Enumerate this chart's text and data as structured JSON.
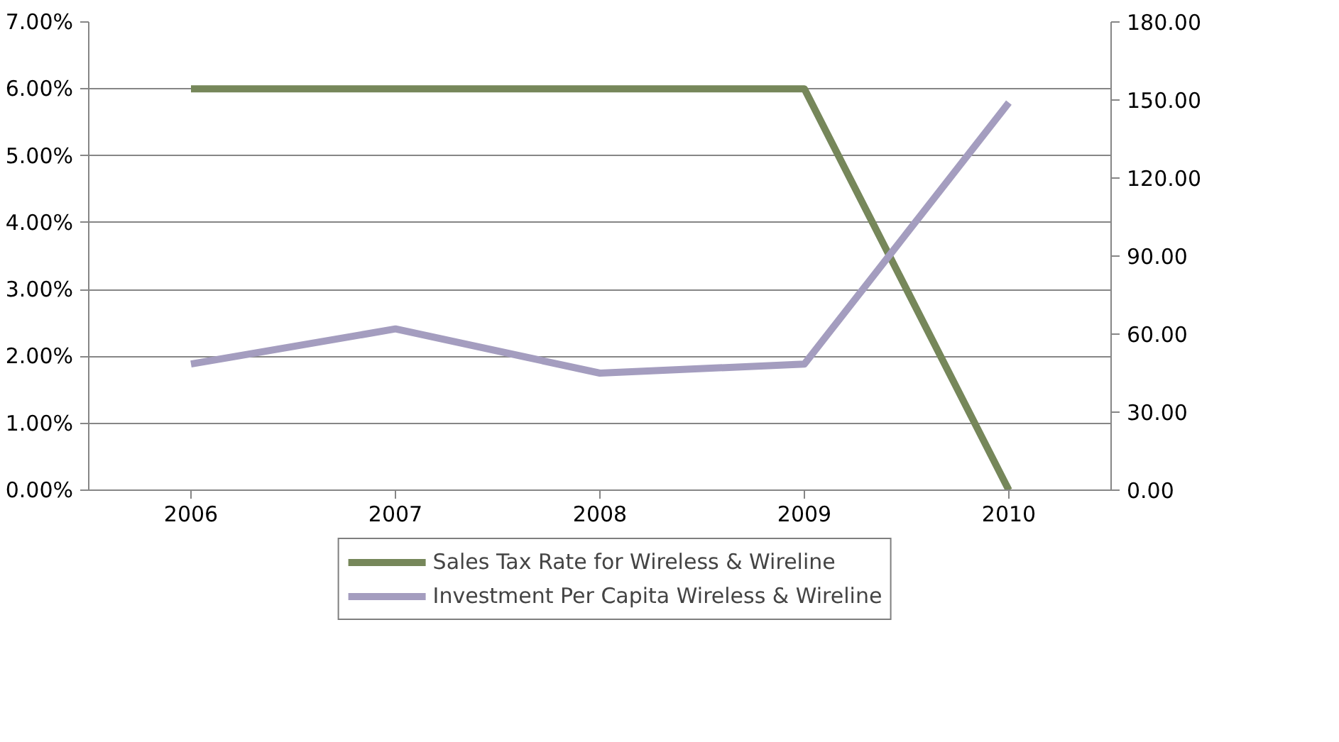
{
  "chart_data": {
    "type": "line",
    "categories": [
      "2006",
      "2007",
      "2008",
      "2009",
      "2010"
    ],
    "series": [
      {
        "name": "Sales Tax Rate for Wireless & Wireline",
        "color": "#76875a",
        "values": [
          6.0,
          6.0,
          6.0,
          6.0,
          0.0
        ]
      },
      {
        "name": "Investment Per Capita Wireless & Wireline",
        "color": "#a49dbf",
        "values": [
          48.5,
          62,
          45,
          48.5,
          149
        ],
        "axis": "y2"
      }
    ],
    "ylim": [
      0,
      7
    ],
    "yticks": [
      {
        "value": 0,
        "label": "0.00%"
      },
      {
        "value": 1,
        "label": "1.00%"
      },
      {
        "value": 2,
        "label": "2.00%"
      },
      {
        "value": 3,
        "label": "3.00%"
      },
      {
        "value": 4,
        "label": "4.00%"
      },
      {
        "value": 5,
        "label": "5.00%"
      },
      {
        "value": 6,
        "label": "6.00%"
      },
      {
        "value": 7,
        "label": "7.00%"
      }
    ],
    "y2lim": [
      0,
      180
    ],
    "y2ticks": [
      {
        "value": 0,
        "label": "0.00"
      },
      {
        "value": 30,
        "label": "30.00"
      },
      {
        "value": 60,
        "label": "60.00"
      },
      {
        "value": 90,
        "label": "90.00"
      },
      {
        "value": 120,
        "label": "120.00"
      },
      {
        "value": 150,
        "label": "150.00"
      },
      {
        "value": 180,
        "label": "180.00"
      }
    ],
    "grid": "y",
    "legend": "bottom",
    "marker": "none",
    "line_style": "solid"
  }
}
